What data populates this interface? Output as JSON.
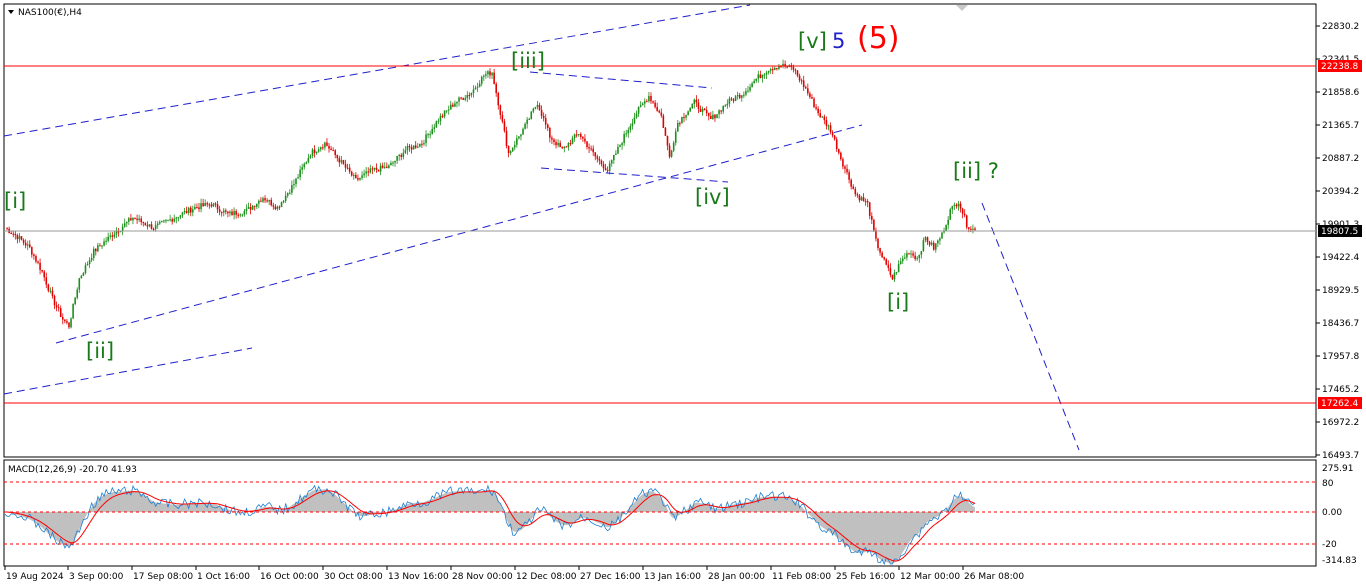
{
  "symbol_label": "NAS100(€),H4",
  "price_axis": {
    "ticks": [
      "22830.2",
      "22341.5",
      "21858.6",
      "21365.7",
      "20887.2",
      "20394.2",
      "19901.3",
      "19422.4",
      "18929.5",
      "18436.7",
      "17957.8",
      "17465.2",
      "16972.2",
      "16493.7"
    ],
    "markers": [
      {
        "id": "resistance",
        "value": "22238.8",
        "color": "#ff0000"
      },
      {
        "id": "current",
        "value": "19807.5",
        "color": "#000000"
      },
      {
        "id": "support",
        "value": "17262.4",
        "color": "#ff0000"
      }
    ]
  },
  "time_axis": [
    "19 Aug 2024",
    "3 Sep 00:00",
    "17 Sep 08:00",
    "1 Oct 16:00",
    "16 Oct 00:00",
    "30 Oct 08:00",
    "13 Nov 16:00",
    "28 Nov 00:00",
    "12 Dec 08:00",
    "27 Dec 16:00",
    "13 Jan 16:00",
    "28 Jan 00:00",
    "11 Feb 08:00",
    "25 Feb 16:00",
    "12 Mar 00:00",
    "26 Mar 08:00"
  ],
  "wave_labels": [
    {
      "id": "i-left",
      "text": "[i]",
      "color": "#1a7a1a"
    },
    {
      "id": "ii-left",
      "text": "[ii]",
      "color": "#1a7a1a"
    },
    {
      "id": "iii",
      "text": "[iii]",
      "color": "#1a7a1a"
    },
    {
      "id": "iv",
      "text": "[iv]",
      "color": "#1a7a1a"
    },
    {
      "id": "v",
      "text": "[v]",
      "color": "#1a7a1a"
    },
    {
      "id": "five-blue",
      "text": "5",
      "color": "#1f1fcc"
    },
    {
      "id": "five-red",
      "text": "(5)",
      "color": "#ff0000"
    },
    {
      "id": "i-right",
      "text": "[i]",
      "color": "#1a7a1a"
    },
    {
      "id": "ii-right",
      "text": "[ii] ?",
      "color": "#1a7a1a"
    }
  ],
  "macd": {
    "label": "MACD(12,26,9) -20.70 41.93",
    "ticks": [
      "275.91",
      "80",
      "0.00",
      "-20",
      "-314.83"
    ],
    "histogram_color": "#c0c0c0",
    "signal_color": "#ff0000",
    "macd_line_color": "#1e7fd0"
  },
  "chart_data": {
    "type": "candlestick",
    "bull_color": "#1a8f1a",
    "bear_color": "#e00000",
    "ylim": [
      16493.7,
      22830.2
    ],
    "levels": [
      22238.8,
      19807.5,
      17262.4
    ],
    "approx_close_path": [
      [
        0,
        19850
      ],
      [
        6,
        19720
      ],
      [
        12,
        19550
      ],
      [
        18,
        19200
      ],
      [
        23,
        18800
      ],
      [
        28,
        18500
      ],
      [
        31,
        18400
      ],
      [
        36,
        19100
      ],
      [
        43,
        19500
      ],
      [
        52,
        19750
      ],
      [
        62,
        20000
      ],
      [
        72,
        19850
      ],
      [
        82,
        20000
      ],
      [
        92,
        20150
      ],
      [
        100,
        20200
      ],
      [
        108,
        20050
      ],
      [
        117,
        20100
      ],
      [
        125,
        20300
      ],
      [
        132,
        20150
      ],
      [
        140,
        20500
      ],
      [
        148,
        20950
      ],
      [
        155,
        21100
      ],
      [
        162,
        20850
      ],
      [
        170,
        20550
      ],
      [
        178,
        20700
      ],
      [
        186,
        20750
      ],
      [
        194,
        21000
      ],
      [
        202,
        21100
      ],
      [
        210,
        21450
      ],
      [
        218,
        21700
      ],
      [
        226,
        21850
      ],
      [
        232,
        22100
      ],
      [
        236,
        22150
      ],
      [
        240,
        21550
      ],
      [
        244,
        20950
      ],
      [
        252,
        21350
      ],
      [
        258,
        21700
      ],
      [
        264,
        21200
      ],
      [
        270,
        21000
      ],
      [
        278,
        21250
      ],
      [
        286,
        20900
      ],
      [
        292,
        20700
      ],
      [
        300,
        21200
      ],
      [
        306,
        21550
      ],
      [
        312,
        21800
      ],
      [
        318,
        21500
      ],
      [
        322,
        20900
      ],
      [
        326,
        21400
      ],
      [
        334,
        21700
      ],
      [
        342,
        21450
      ],
      [
        350,
        21700
      ],
      [
        358,
        21850
      ],
      [
        364,
        22050
      ],
      [
        370,
        22200
      ],
      [
        376,
        22250
      ],
      [
        382,
        22200
      ],
      [
        388,
        21900
      ],
      [
        394,
        21550
      ],
      [
        400,
        21300
      ],
      [
        406,
        20800
      ],
      [
        412,
        20350
      ],
      [
        418,
        20200
      ],
      [
        422,
        19650
      ],
      [
        426,
        19350
      ],
      [
        430,
        19100
      ],
      [
        434,
        19350
      ],
      [
        438,
        19500
      ],
      [
        442,
        19400
      ],
      [
        446,
        19700
      ],
      [
        450,
        19550
      ],
      [
        454,
        19750
      ],
      [
        458,
        20100
      ],
      [
        462,
        20250
      ],
      [
        466,
        19900
      ],
      [
        470,
        19807.5
      ]
    ]
  }
}
